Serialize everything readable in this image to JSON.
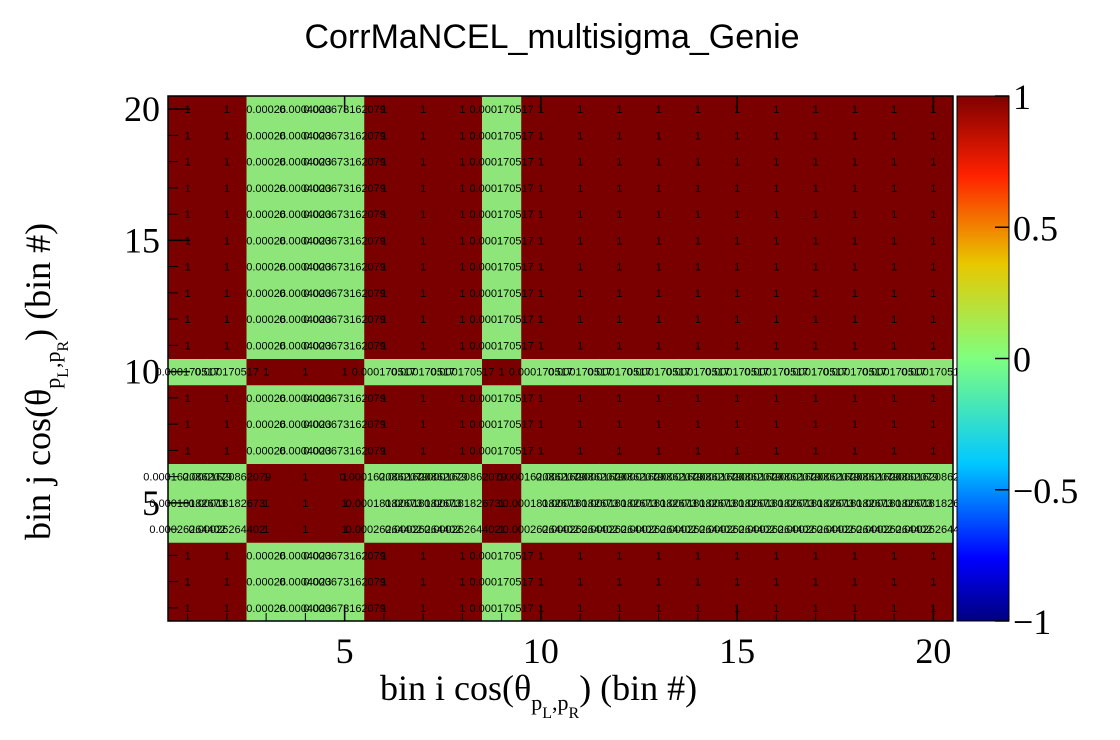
{
  "chart_data": {
    "type": "heatmap",
    "title": "CorrMaNCEL_multisigma_Genie",
    "xlabel": "bin i cos(θ",
    "xlabel_sub": "p",
    "xlabel_subscripts": [
      "L",
      "R"
    ],
    "xlabel_suffix": ") (bin #)",
    "ylabel": "bin j cos(θ",
    "ylabel_suffix": ") (bin #)",
    "x_bins": 20,
    "y_bins": 20,
    "x_ticks": [
      "5",
      "10",
      "15",
      "20"
    ],
    "y_ticks": [
      "5",
      "10",
      "15",
      "20"
    ],
    "zlim": [
      -1,
      1
    ],
    "z_ticks": [
      "1",
      "0.5",
      "0",
      "−0.5",
      "−1"
    ],
    "colormap": "rainbow",
    "low_columns": [
      3,
      4,
      5,
      9
    ],
    "low_rows": [
      4,
      5,
      6,
      10
    ],
    "diag_pattern": "1",
    "cell_text": {
      "one": "1",
      "c3": "0.00026",
      "c4": "0.0004023",
      "c5": "0.0006731",
      "c5b": "62079",
      "c9": "0.000170517",
      "r10": "0.000170517",
      "r6": "0.00016208",
      "r6b": "62079",
      "r5": "0.00018",
      "r5b": "182673",
      "r4": "0.00026",
      "r4b": "264402"
    },
    "colors": {
      "high": "#7a0000",
      "low": "#8ee57a",
      "background": "#ffffff"
    }
  }
}
